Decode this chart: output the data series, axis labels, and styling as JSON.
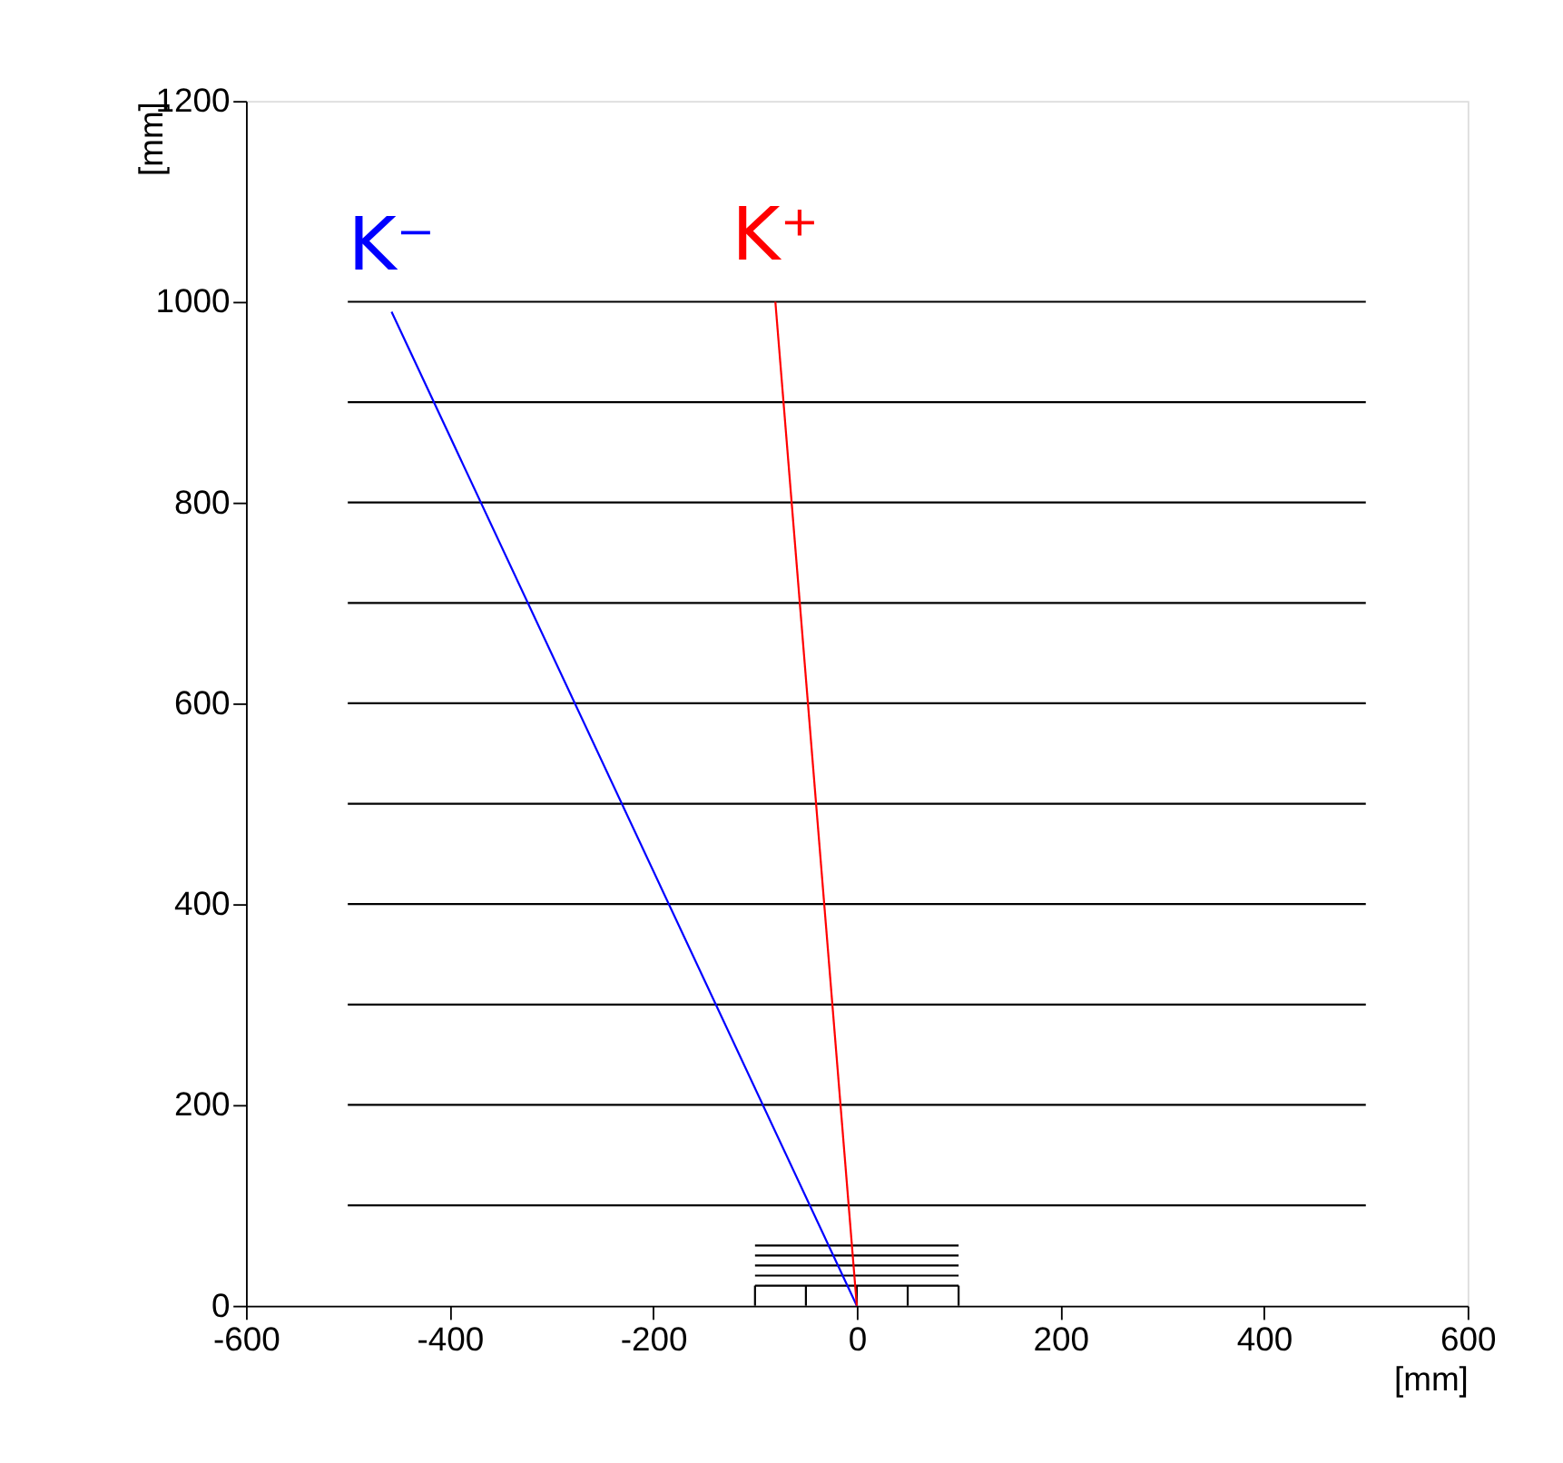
{
  "chart_data": {
    "type": "line",
    "xlabel": "[mm]",
    "ylabel": "[mm]",
    "xlim": [
      -600,
      600
    ],
    "xticks": [
      -600,
      -400,
      -200,
      0,
      200,
      400,
      600
    ],
    "ylim": [
      0,
      1200
    ],
    "yticks": [
      0,
      200,
      400,
      600,
      800,
      1000,
      1200
    ],
    "series": [
      {
        "color": "#000000",
        "x": [
          -500,
          500
        ],
        "values": [
          100,
          100
        ]
      },
      {
        "color": "#000000",
        "x": [
          -500,
          500
        ],
        "values": [
          200,
          200
        ]
      },
      {
        "color": "#000000",
        "x": [
          -500,
          500
        ],
        "values": [
          300,
          300
        ]
      },
      {
        "color": "#000000",
        "x": [
          -500,
          500
        ],
        "values": [
          400,
          400
        ]
      },
      {
        "color": "#000000",
        "x": [
          -500,
          500
        ],
        "values": [
          500,
          500
        ]
      },
      {
        "color": "#000000",
        "x": [
          -500,
          500
        ],
        "values": [
          600,
          600
        ]
      },
      {
        "color": "#000000",
        "x": [
          -500,
          500
        ],
        "values": [
          700,
          700
        ]
      },
      {
        "color": "#000000",
        "x": [
          -500,
          500
        ],
        "values": [
          800,
          800
        ]
      },
      {
        "color": "#000000",
        "x": [
          -500,
          500
        ],
        "values": [
          900,
          900
        ]
      },
      {
        "color": "#000000",
        "x": [
          -500,
          500
        ],
        "values": [
          1000,
          1000
        ]
      },
      {
        "color": "#000000",
        "x": [
          -100,
          100
        ],
        "values": [
          30,
          30
        ]
      },
      {
        "color": "#000000",
        "x": [
          -100,
          100
        ],
        "values": [
          40,
          40
        ]
      },
      {
        "color": "#000000",
        "x": [
          -100,
          100
        ],
        "values": [
          50,
          50
        ]
      },
      {
        "color": "#000000",
        "x": [
          -100,
          100
        ],
        "values": [
          60,
          60
        ]
      },
      {
        "color": "#000000",
        "x": [
          -100,
          100
        ],
        "values": [
          20,
          20
        ]
      },
      {
        "color": "#000000",
        "x": [
          -100,
          -100
        ],
        "values": [
          0,
          20
        ]
      },
      {
        "color": "#000000",
        "x": [
          -50,
          -50
        ],
        "values": [
          0,
          20
        ]
      },
      {
        "color": "#000000",
        "x": [
          0,
          0
        ],
        "values": [
          0,
          20
        ]
      },
      {
        "color": "#000000",
        "x": [
          50,
          50
        ],
        "values": [
          0,
          20
        ]
      },
      {
        "color": "#000000",
        "x": [
          100,
          100
        ],
        "values": [
          0,
          20
        ]
      },
      {
        "name": "K⁻",
        "color": "#0000ff",
        "x": [
          0,
          -457
        ],
        "values": [
          0,
          990
        ]
      },
      {
        "name": "K⁺",
        "color": "#ff0000",
        "x": [
          0,
          -80
        ],
        "values": [
          0,
          1000
        ]
      }
    ]
  }
}
